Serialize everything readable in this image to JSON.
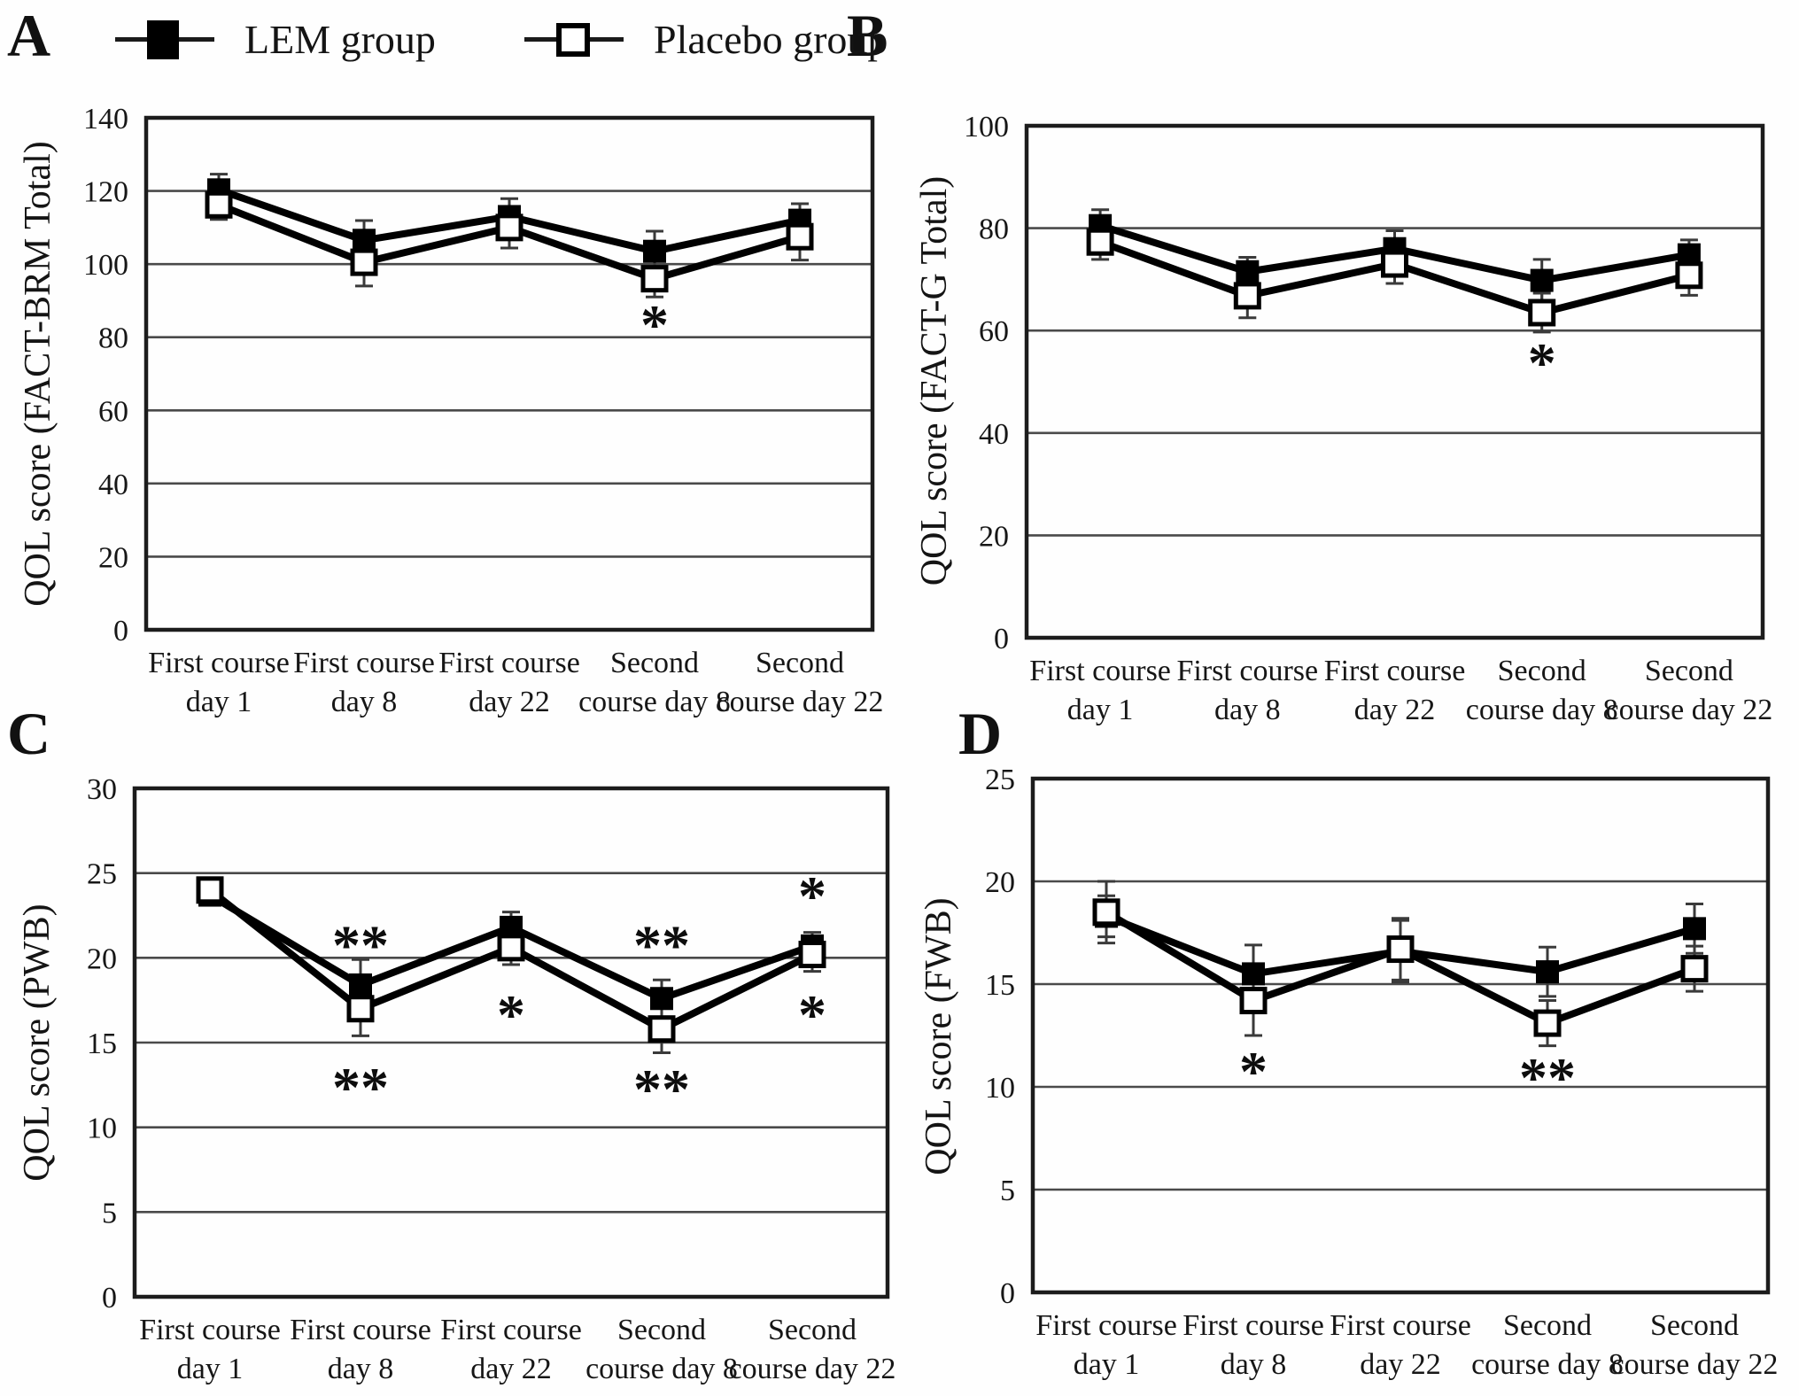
{
  "figure": {
    "description": "Four-panel QOL score line chart figure comparing LEM group and Placebo group over chemotherapy courses",
    "legend": {
      "items": [
        {
          "label": "LEM group",
          "marker": "filled-square"
        },
        {
          "label": "Placebo group",
          "marker": "open-square"
        }
      ]
    }
  },
  "chart_data": [
    {
      "type": "line",
      "panel": "A",
      "ylabel": "QOL score (FACT-BRM Total)",
      "ylim": [
        0,
        140
      ],
      "ystep": 20,
      "grid": "horizontal",
      "legend_position": "top-of-figure",
      "categories": [
        [
          "First course",
          "day 1"
        ],
        [
          "First course",
          "day 8"
        ],
        [
          "First course",
          "day 22"
        ],
        [
          "Second",
          "course day 8"
        ],
        [
          "Second",
          "course day 22"
        ]
      ],
      "series": [
        {
          "name": "LEM group",
          "marker": "filled-square",
          "values": [
            120.3,
            106.5,
            113,
            103.5,
            112
          ],
          "errors": [
            4.3,
            5.4,
            4.9,
            5.5,
            4.5
          ]
        },
        {
          "name": "Placebo group",
          "marker": "open-square",
          "values": [
            116.2,
            100.5,
            110,
            96,
            107.5
          ],
          "errors": [
            4.0,
            6.5,
            5.6,
            5.0,
            6.4
          ]
        }
      ],
      "annotations": [
        {
          "text": "*",
          "category": 3,
          "y": 86,
          "meaning": "significant difference below Placebo point"
        }
      ]
    },
    {
      "type": "line",
      "panel": "B",
      "ylabel": "QOL score (FACT-G Total)",
      "ylim": [
        0,
        100
      ],
      "ystep": 20,
      "grid": "horizontal",
      "categories": [
        [
          "First course",
          "day 1"
        ],
        [
          "First course",
          "day 8"
        ],
        [
          "First course",
          "day 22"
        ],
        [
          "Second",
          "course day 8"
        ],
        [
          "Second",
          "course day 22"
        ]
      ],
      "series": [
        {
          "name": "LEM group",
          "marker": "filled-square",
          "values": [
            80.5,
            71.5,
            76,
            69.8,
            74.8
          ],
          "errors": [
            3.1,
            2.8,
            3.5,
            4.1,
            2.9
          ]
        },
        {
          "name": "Placebo group",
          "marker": "open-square",
          "values": [
            77.3,
            66.8,
            73,
            63.5,
            70.8
          ],
          "errors": [
            3.4,
            4.3,
            3.8,
            3.8,
            3.9
          ]
        }
      ],
      "annotations": [
        {
          "text": "*",
          "category": 3,
          "y": 55.5,
          "meaning": "significant difference below Placebo point"
        }
      ]
    },
    {
      "type": "line",
      "panel": "C",
      "ylabel": "QOL score (PWB)",
      "ylim": [
        0,
        30
      ],
      "ystep": 5,
      "grid": "horizontal",
      "categories": [
        [
          "First course",
          "day 1"
        ],
        [
          "First course",
          "day 8"
        ],
        [
          "First course",
          "day 22"
        ],
        [
          "Second",
          "course day 8"
        ],
        [
          "Second",
          "course day 22"
        ]
      ],
      "series": [
        {
          "name": "LEM group",
          "marker": "filled-square",
          "values": [
            23.7,
            18.4,
            21.8,
            17.6,
            20.7
          ],
          "errors": [
            0.4,
            1.5,
            0.9,
            1.1,
            0.8
          ]
        },
        {
          "name": "Placebo group",
          "marker": "open-square",
          "values": [
            24.0,
            17.0,
            20.6,
            15.8,
            20.2
          ],
          "errors": [
            0.4,
            1.6,
            1.0,
            1.4,
            1.0
          ]
        }
      ],
      "annotations": [
        {
          "text": "**",
          "category": 1,
          "y": 21.3,
          "meaning": "above LEM point"
        },
        {
          "text": "**",
          "category": 1,
          "y": 12.9,
          "meaning": "below Placebo point"
        },
        {
          "text": "*",
          "category": 2,
          "y": 17.2,
          "meaning": "below Placebo point"
        },
        {
          "text": "**",
          "category": 3,
          "y": 21.3,
          "meaning": "above LEM point"
        },
        {
          "text": "**",
          "category": 3,
          "y": 12.8,
          "meaning": "below Placebo point"
        },
        {
          "text": "*",
          "category": 4,
          "y": 24.2,
          "meaning": "above LEM point"
        },
        {
          "text": "*",
          "category": 4,
          "y": 17.2,
          "meaning": "below Placebo point"
        }
      ]
    },
    {
      "type": "line",
      "panel": "D",
      "ylabel": "QOL score (FWB)",
      "ylim": [
        0,
        25
      ],
      "ystep": 5,
      "grid": "horizontal",
      "categories": [
        [
          "First course",
          "day 1"
        ],
        [
          "First course",
          "day 8"
        ],
        [
          "First course",
          "day 22"
        ],
        [
          "Second",
          "course day 8"
        ],
        [
          "Second",
          "course day 22"
        ]
      ],
      "series": [
        {
          "name": "LEM group",
          "marker": "filled-square",
          "values": [
            18.3,
            15.5,
            16.6,
            15.6,
            17.7
          ],
          "errors": [
            1.0,
            1.4,
            1.5,
            1.2,
            1.2
          ]
        },
        {
          "name": "Placebo group",
          "marker": "open-square",
          "values": [
            18.5,
            14.2,
            16.7,
            13.1,
            15.75
          ],
          "errors": [
            1.5,
            1.7,
            1.5,
            1.1,
            1.1
          ]
        }
      ],
      "annotations": [
        {
          "text": "*",
          "category": 1,
          "y": 11.2,
          "meaning": "below Placebo point"
        },
        {
          "text": "**",
          "category": 3,
          "y": 10.9,
          "meaning": "below Placebo point"
        }
      ]
    }
  ]
}
